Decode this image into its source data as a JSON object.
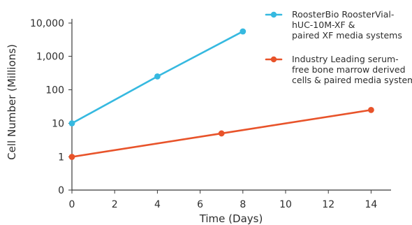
{
  "chart_data": {
    "type": "line",
    "title": "",
    "xlabel": "Time (Days)",
    "ylabel": "Cell Number (Millions)",
    "x_ticks": [
      0,
      2,
      4,
      6,
      8,
      10,
      12,
      14
    ],
    "x_tick_labels": [
      "0",
      "2",
      "4",
      "6",
      "8",
      "10",
      "12",
      "14"
    ],
    "y_ticks": [
      0,
      1,
      10,
      100,
      1000,
      10000
    ],
    "y_tick_labels": [
      "0",
      "1",
      "10",
      "100",
      "1,000",
      "10,000"
    ],
    "xlim": [
      0,
      15
    ],
    "ylim": [
      0,
      10000
    ],
    "y_scale": "log",
    "grid": false,
    "legend_position": "top-right",
    "series": [
      {
        "name": "RooseterBio RoosterVial-hUC-10M-XF & paired XF media systems",
        "legend_lines": [
          "RoosterBio RoosterVial-",
          "hUC-10M-XF &",
          "paired XF media systems"
        ],
        "color": "#36B9E0",
        "points": [
          {
            "x": 0,
            "y": 10
          },
          {
            "x": 4,
            "y": 250
          },
          {
            "x": 8,
            "y": 5500
          }
        ]
      },
      {
        "name": "Industry Leading serum-free bone marrow derived cells & paired media systems",
        "legend_lines": [
          "Industry Leading serum-",
          "free bone marrow derived",
          "cells & paired media systems"
        ],
        "color": "#E8532A",
        "points": [
          {
            "x": 0,
            "y": 1
          },
          {
            "x": 7,
            "y": 5
          },
          {
            "x": 14,
            "y": 25
          }
        ]
      }
    ]
  }
}
